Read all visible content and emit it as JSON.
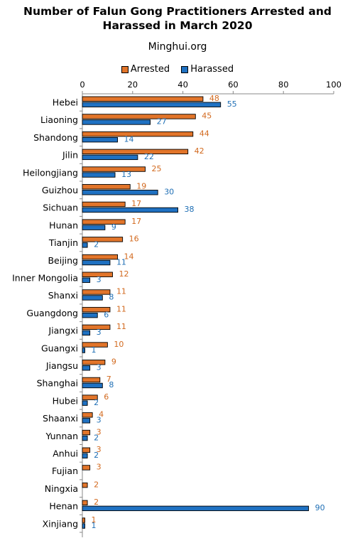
{
  "chart_data": {
    "type": "bar",
    "orientation": "horizontal",
    "title": "Number of Falun Gong Practitioners Arrested and Harassed in March 2020",
    "title_lines": [
      "Number of Falun Gong Practitioners Arrested and",
      "Harassed in March 2020"
    ],
    "subtitle": "Minghui.org",
    "xlim": [
      0,
      100
    ],
    "xticks": [
      0,
      20,
      40,
      60,
      80,
      100
    ],
    "grid": false,
    "legend_position": "top-center",
    "categories": [
      "Hebei",
      "Liaoning",
      "Shandong",
      "Jilin",
      "Heilongjiang",
      "Guizhou",
      "Sichuan",
      "Hunan",
      "Tianjin",
      "Beijing",
      "Inner Mongolia",
      "Shanxi",
      "Guangdong",
      "Jiangxi",
      "Guangxi",
      "Jiangsu",
      "Shanghai",
      "Hubei",
      "Shaanxi",
      "Yunnan",
      "Anhui",
      "Fujian",
      "Ningxia",
      "Henan",
      "Xinjiang"
    ],
    "series": [
      {
        "name": "Arrested",
        "color": "#E2752A",
        "values": [
          48,
          45,
          44,
          42,
          25,
          19,
          17,
          17,
          16,
          14,
          12,
          11,
          11,
          11,
          10,
          9,
          7,
          6,
          4,
          3,
          3,
          3,
          2,
          2,
          1
        ]
      },
      {
        "name": "Harassed",
        "color": "#1F71C2",
        "values": [
          55,
          27,
          14,
          22,
          13,
          30,
          38,
          9,
          2,
          11,
          3,
          8,
          6,
          3,
          1,
          3,
          8,
          2,
          3,
          2,
          2,
          null,
          null,
          90,
          1
        ]
      }
    ]
  }
}
